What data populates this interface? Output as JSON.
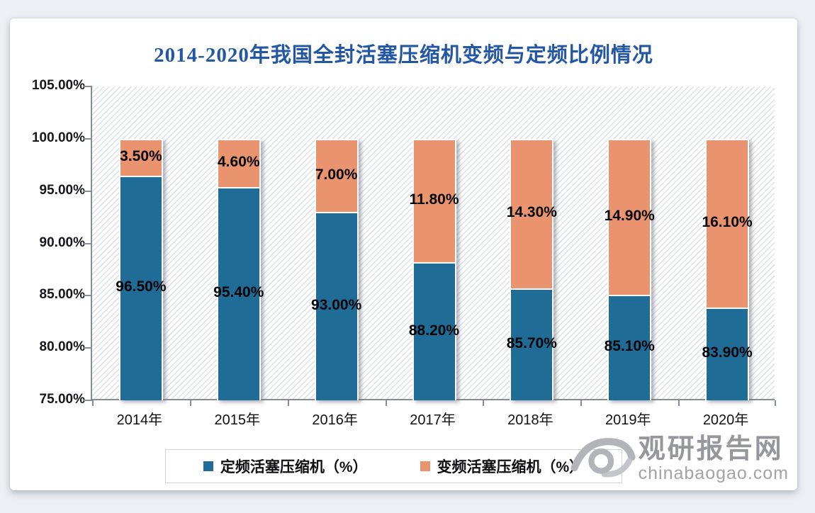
{
  "title": "2014-2020年我国全封活塞压缩机变频与定频比例情况",
  "title_color": "#2357A3",
  "chart_data": {
    "type": "bar",
    "stacked": true,
    "orientation": "vertical",
    "categories": [
      "2014年",
      "2015年",
      "2016年",
      "2017年",
      "2018年",
      "2019年",
      "2020年"
    ],
    "series": [
      {
        "name": "定频活塞压缩机（%）",
        "color": "#1F6C96",
        "values": [
          96.5,
          95.4,
          93.0,
          88.2,
          85.7,
          85.1,
          83.9
        ],
        "labels": [
          "96.50%",
          "95.40%",
          "93.00%",
          "88.20%",
          "85.70%",
          "85.10%",
          "83.90%"
        ]
      },
      {
        "name": "变频活塞压缩机（%）",
        "color": "#E9946E",
        "values": [
          3.5,
          4.6,
          7.0,
          11.8,
          14.3,
          14.9,
          16.1
        ],
        "labels": [
          "3.50%",
          "4.60%",
          "7.00%",
          "11.80%",
          "14.30%",
          "14.90%",
          "16.10%"
        ]
      }
    ],
    "ylim": [
      75,
      105
    ],
    "ytick_step": 5,
    "ytick_labels": [
      "75.00%",
      "80.00%",
      "85.00%",
      "90.00%",
      "95.00%",
      "100.00%",
      "105.00%"
    ],
    "grid": false,
    "plot_background": "diagonal-hatch",
    "legend_position": "bottom",
    "bar_total": 100
  },
  "watermark": {
    "brand": "观研报告网",
    "domain": "chinabaogao.com"
  }
}
